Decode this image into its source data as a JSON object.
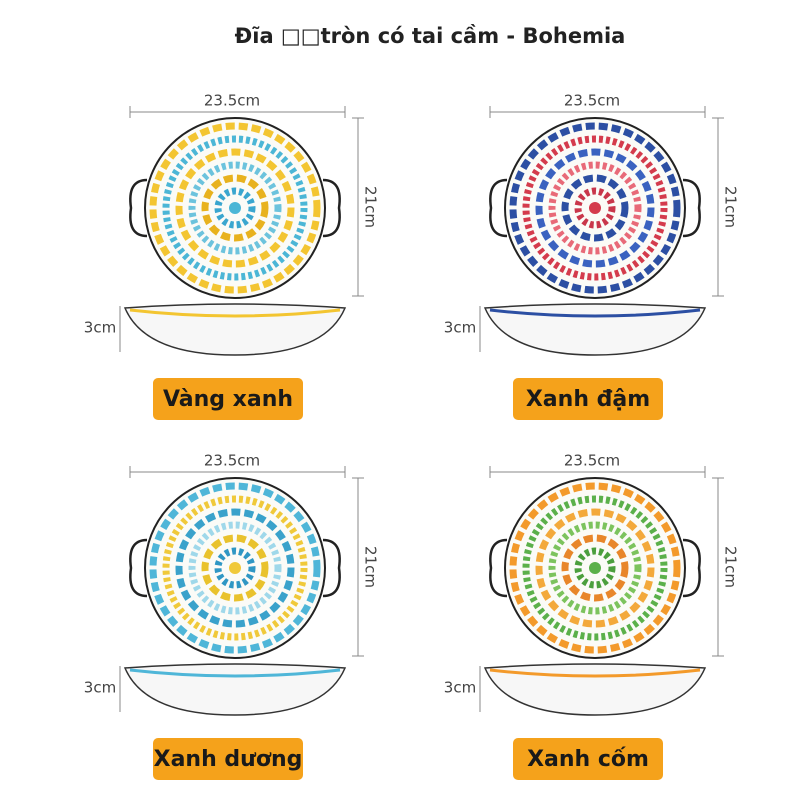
{
  "title": "Đĩa □□tròn có tai cầm - Bohemia",
  "items": [
    {
      "width": "23.5cm",
      "height": "21cm",
      "depth": "3cm",
      "name": "Vàng xanh"
    },
    {
      "width": "23.5cm",
      "height": "21cm",
      "depth": "3cm",
      "name": "Xanh đậm"
    },
    {
      "width": "23.5cm",
      "height": "21cm",
      "depth": "3cm",
      "name": "Xanh dương"
    },
    {
      "width": "23.5cm",
      "height": "21cm",
      "depth": "3cm",
      "name": "Xanh cốm"
    }
  ]
}
